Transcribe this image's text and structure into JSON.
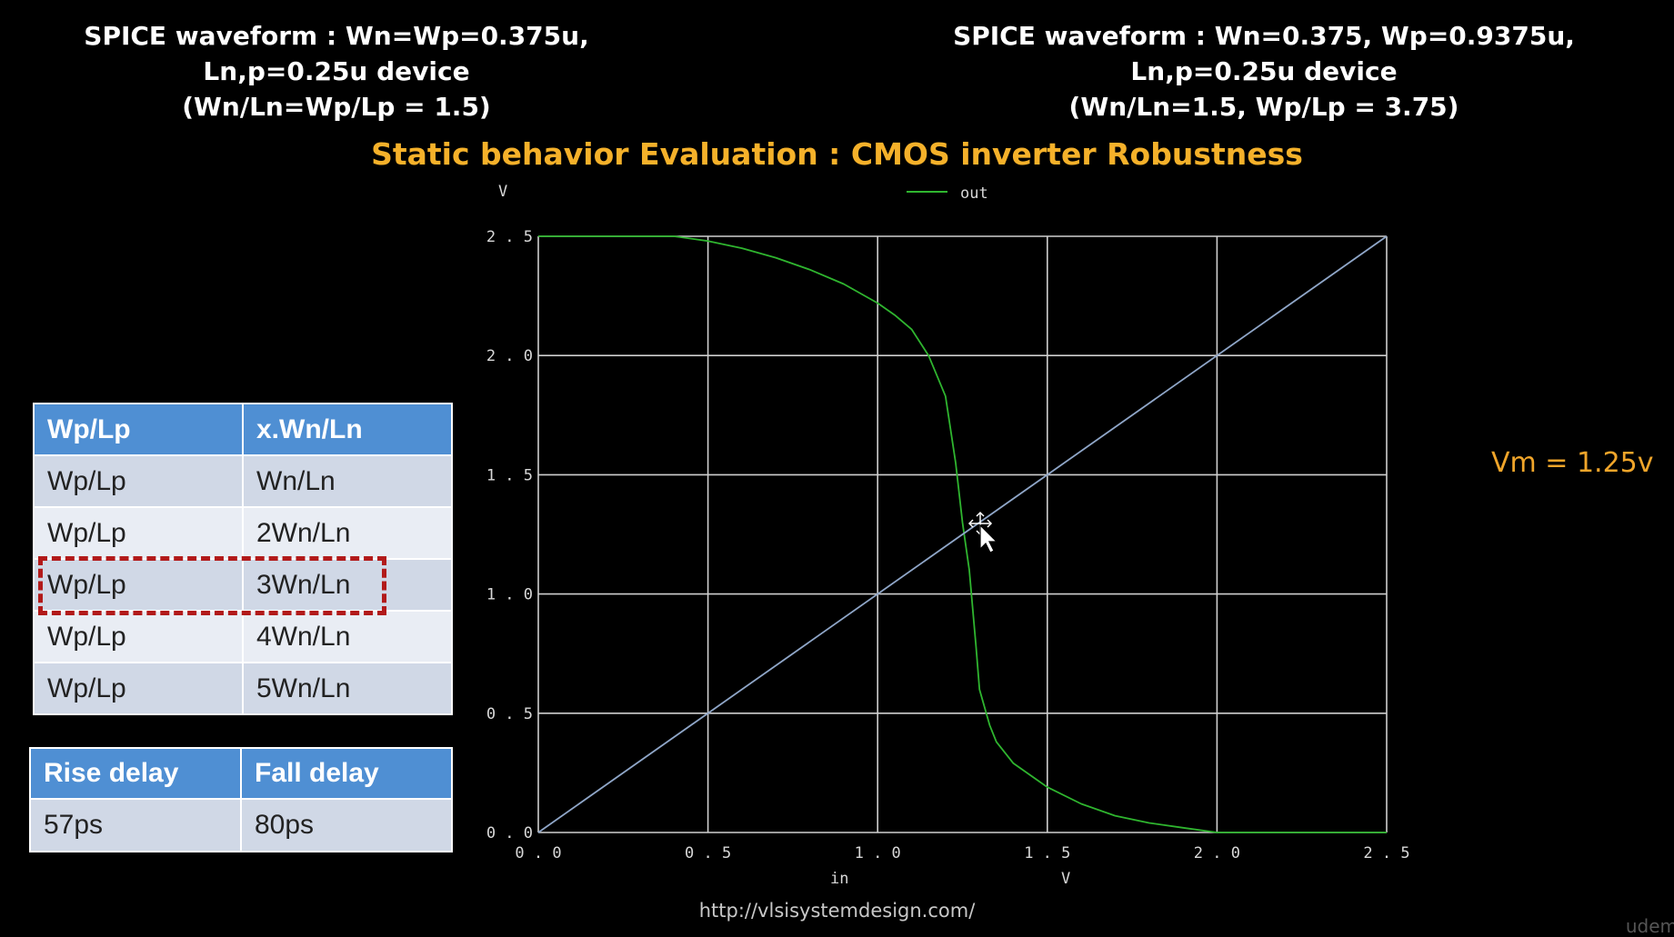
{
  "header_left": {
    "line1": "SPICE waveform : Wn=Wp=0.375u,",
    "line2": "Ln,p=0.25u device",
    "line3": "(Wn/Ln=Wp/Lp = 1.5)"
  },
  "header_right": {
    "line1": "SPICE waveform : Wn=0.375, Wp=0.9375u,",
    "line2": "Ln,p=0.25u device",
    "line3": "(Wn/Ln=1.5, Wp/Lp = 3.75)"
  },
  "main_title": "Static behavior Evaluation : CMOS inverter Robustness",
  "vm_label": "Vm = 1.25v",
  "url": "http://vlsisystemdesign.com/",
  "corner_text": "udem",
  "ratio_table": {
    "headers": [
      "Wp/Lp",
      "x.Wn/Ln"
    ],
    "rows": [
      [
        "Wp/Lp",
        "Wn/Ln"
      ],
      [
        "Wp/Lp",
        "2Wn/Ln"
      ],
      [
        "Wp/Lp",
        "3Wn/Ln"
      ],
      [
        "Wp/Lp",
        "4Wn/Ln"
      ],
      [
        "Wp/Lp",
        "5Wn/Ln"
      ]
    ],
    "highlighted_row": 2
  },
  "delay_table": {
    "headers": [
      "Rise delay",
      "Fall delay"
    ],
    "rows": [
      [
        "57ps",
        "80ps"
      ]
    ]
  },
  "icons": {
    "cursor": "move-cursor-icon"
  },
  "colors": {
    "title": "#f5b12a",
    "vm": "#f0a52a",
    "out_series": "#2fb52f",
    "reference_line": "#8fa6c8",
    "grid": "#cfcfcf",
    "table_header": "#4f8fd3",
    "highlight": "#b21a1a"
  },
  "chart_data": {
    "type": "line",
    "xlabel": "in",
    "xunit": "V",
    "ylabel_unit": "V",
    "xlim": [
      0,
      2.5
    ],
    "ylim": [
      0,
      2.5
    ],
    "x_ticks": [
      "0.0",
      "0.5",
      "1.0",
      "1.5",
      "2.0",
      "2.5"
    ],
    "y_ticks": [
      "0.0",
      "0.5",
      "1.0",
      "1.5",
      "2.0",
      "2.5"
    ],
    "grid": true,
    "legend": "top",
    "series": [
      {
        "name": "out",
        "x": [
          0,
          0.4,
          0.5,
          0.6,
          0.7,
          0.8,
          0.9,
          1.0,
          1.05,
          1.1,
          1.15,
          1.2,
          1.23,
          1.25,
          1.27,
          1.29,
          1.3,
          1.33,
          1.35,
          1.4,
          1.5,
          1.6,
          1.7,
          1.8,
          1.9,
          2.0,
          2.5
        ],
        "y": [
          2.5,
          2.5,
          2.48,
          2.45,
          2.41,
          2.36,
          2.3,
          2.22,
          2.17,
          2.11,
          2.0,
          1.83,
          1.55,
          1.3,
          1.1,
          0.78,
          0.6,
          0.45,
          0.38,
          0.29,
          0.19,
          0.12,
          0.07,
          0.04,
          0.02,
          0.0,
          0.0
        ]
      },
      {
        "x": [
          0,
          2.5
        ],
        "y": [
          0,
          2.5
        ]
      }
    ]
  }
}
